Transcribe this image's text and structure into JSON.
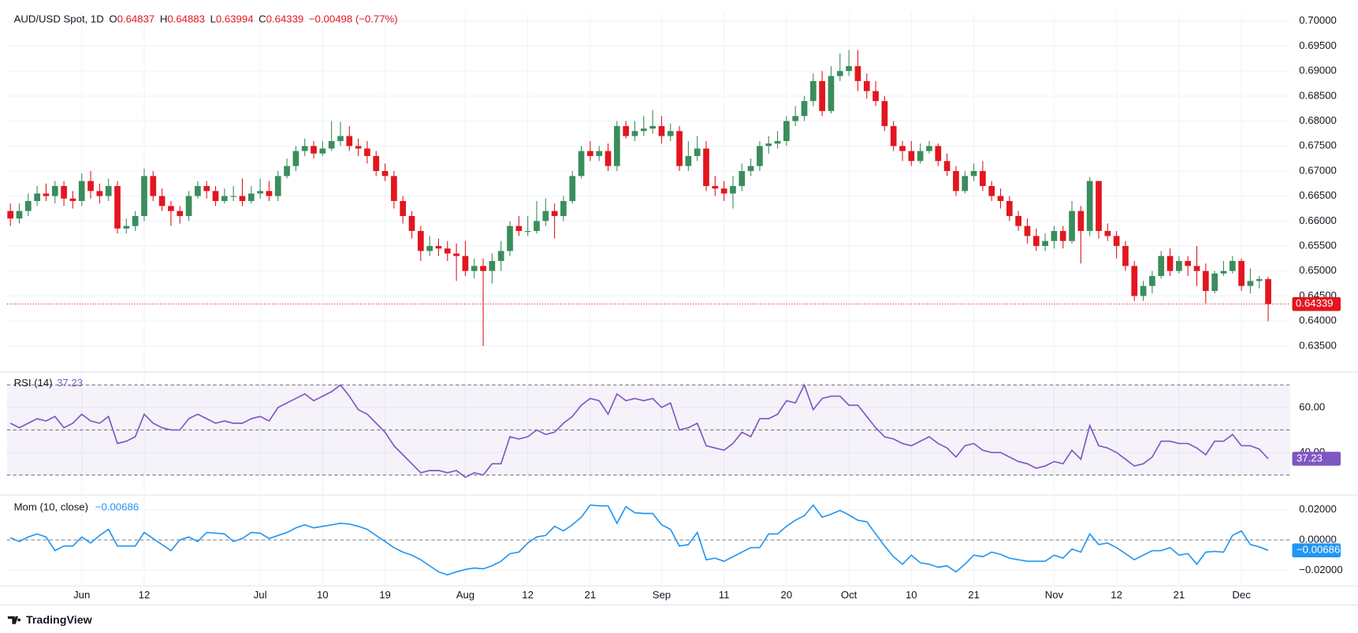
{
  "brand": "TradingView",
  "chart_data": [
    {
      "type": "candlestick",
      "title": "AUD/USD Spot, 1D",
      "ohlc_keys": [
        "O",
        "H",
        "L",
        "C"
      ],
      "change_label": "−0.00498 (−0.77%)",
      "up_color": "#3a8d5c",
      "down_color": "#e3161f",
      "grid": true,
      "categories": [
        null,
        null,
        null,
        null,
        null,
        null,
        null,
        null,
        "Jun",
        null,
        null,
        null,
        null,
        null,
        null,
        "12",
        null,
        null,
        null,
        null,
        null,
        null,
        null,
        null,
        null,
        null,
        null,
        null,
        "Jul",
        null,
        null,
        null,
        null,
        null,
        null,
        "10",
        null,
        null,
        null,
        null,
        null,
        null,
        "19",
        null,
        null,
        null,
        null,
        null,
        null,
        null,
        null,
        "Aug",
        null,
        null,
        null,
        null,
        null,
        null,
        "12",
        null,
        null,
        null,
        null,
        null,
        null,
        "21",
        null,
        null,
        null,
        null,
        null,
        null,
        null,
        "Sep",
        null,
        null,
        null,
        null,
        null,
        null,
        "11",
        null,
        null,
        null,
        null,
        null,
        null,
        "20",
        null,
        null,
        null,
        null,
        null,
        null,
        "Oct",
        null,
        null,
        null,
        null,
        null,
        null,
        "10",
        null,
        null,
        null,
        null,
        null,
        null,
        "21",
        null,
        null,
        null,
        null,
        null,
        null,
        null,
        null,
        "Nov",
        null,
        null,
        null,
        null,
        null,
        null,
        "12",
        null,
        null,
        null,
        null,
        null,
        null,
        "21",
        null,
        null,
        null,
        null,
        null,
        null,
        "Dec",
        null,
        null,
        null
      ],
      "open": [
        0.662,
        0.6605,
        0.662,
        0.664,
        0.6655,
        0.665,
        0.667,
        0.6645,
        0.664,
        0.668,
        0.666,
        0.665,
        0.667,
        0.6585,
        0.659,
        0.661,
        0.669,
        0.665,
        0.663,
        0.662,
        0.661,
        0.665,
        0.667,
        0.666,
        0.664,
        0.665,
        0.665,
        0.664,
        0.6655,
        0.666,
        0.665,
        0.669,
        0.671,
        0.674,
        0.675,
        0.6735,
        0.6745,
        0.676,
        0.677,
        0.675,
        0.6745,
        0.673,
        0.67,
        0.669,
        0.664,
        0.661,
        0.658,
        0.654,
        0.655,
        0.6545,
        0.6535,
        0.653,
        0.65,
        0.651,
        0.65,
        0.652,
        0.654,
        0.659,
        0.658,
        0.658,
        0.66,
        0.662,
        0.661,
        0.664,
        0.669,
        0.674,
        0.673,
        0.674,
        0.671,
        0.679,
        0.677,
        0.678,
        0.6785,
        0.679,
        0.677,
        0.678,
        0.671,
        0.673,
        0.6745,
        0.667,
        0.6665,
        0.6655,
        0.667,
        0.67,
        0.671,
        0.675,
        0.6755,
        0.676,
        0.68,
        0.681,
        0.684,
        0.688,
        0.682,
        0.689,
        0.69,
        0.691,
        0.688,
        0.686,
        0.684,
        0.679,
        0.675,
        0.674,
        0.672,
        0.674,
        0.675,
        0.672,
        0.67,
        0.666,
        0.669,
        0.67,
        0.667,
        0.665,
        0.664,
        0.661,
        0.659,
        0.657,
        0.655,
        0.656,
        0.658,
        0.656,
        0.662,
        0.658,
        0.668,
        0.658,
        0.657,
        0.655,
        0.651,
        0.645,
        0.647,
        0.649,
        0.653,
        0.65,
        0.652,
        0.651,
        0.65,
        0.646,
        0.6495,
        0.65,
        0.652,
        0.647,
        0.648,
        0.64837
      ],
      "high": [
        0.6635,
        0.6635,
        0.6655,
        0.667,
        0.6675,
        0.668,
        0.668,
        0.666,
        0.6695,
        0.67,
        0.6675,
        0.6685,
        0.668,
        0.6605,
        0.662,
        0.6705,
        0.67,
        0.6665,
        0.664,
        0.663,
        0.666,
        0.668,
        0.668,
        0.667,
        0.6665,
        0.667,
        0.6685,
        0.667,
        0.6685,
        0.668,
        0.67,
        0.6725,
        0.675,
        0.6765,
        0.676,
        0.676,
        0.68,
        0.6798,
        0.679,
        0.6765,
        0.676,
        0.674,
        0.6715,
        0.67,
        0.665,
        0.662,
        0.659,
        0.657,
        0.6565,
        0.656,
        0.6555,
        0.656,
        0.6525,
        0.6525,
        0.6535,
        0.656,
        0.66,
        0.661,
        0.661,
        0.664,
        0.6645,
        0.6635,
        0.665,
        0.67,
        0.675,
        0.676,
        0.675,
        0.6755,
        0.68,
        0.68,
        0.68,
        0.681,
        0.6822,
        0.681,
        0.6795,
        0.679,
        0.676,
        0.677,
        0.676,
        0.669,
        0.668,
        0.669,
        0.6715,
        0.6725,
        0.676,
        0.677,
        0.678,
        0.681,
        0.683,
        0.685,
        0.6895,
        0.69,
        0.691,
        0.6935,
        0.6942,
        0.6942,
        0.6895,
        0.688,
        0.685,
        0.68,
        0.676,
        0.676,
        0.6755,
        0.676,
        0.6755,
        0.6735,
        0.671,
        0.67,
        0.6715,
        0.672,
        0.668,
        0.6665,
        0.665,
        0.662,
        0.6605,
        0.6585,
        0.6575,
        0.659,
        0.659,
        0.664,
        0.663,
        0.6688,
        0.668,
        0.6595,
        0.658,
        0.656,
        0.652,
        0.648,
        0.65,
        0.654,
        0.6545,
        0.653,
        0.653,
        0.655,
        0.6515,
        0.65,
        0.652,
        0.653,
        0.6525,
        0.6505,
        0.649,
        0.64883
      ],
      "low": [
        0.659,
        0.6595,
        0.661,
        0.663,
        0.664,
        0.6635,
        0.663,
        0.6625,
        0.663,
        0.6645,
        0.6635,
        0.664,
        0.6575,
        0.6575,
        0.658,
        0.66,
        0.664,
        0.662,
        0.659,
        0.6595,
        0.66,
        0.6645,
        0.6645,
        0.663,
        0.6635,
        0.664,
        0.663,
        0.6635,
        0.6645,
        0.664,
        0.664,
        0.6685,
        0.67,
        0.673,
        0.6725,
        0.673,
        0.674,
        0.675,
        0.674,
        0.673,
        0.6715,
        0.669,
        0.668,
        0.6625,
        0.6595,
        0.6565,
        0.652,
        0.653,
        0.653,
        0.652,
        0.648,
        0.649,
        0.6485,
        0.635,
        0.6475,
        0.65,
        0.653,
        0.657,
        0.657,
        0.6575,
        0.659,
        0.6565,
        0.66,
        0.6635,
        0.6685,
        0.672,
        0.672,
        0.67,
        0.67,
        0.6765,
        0.676,
        0.677,
        0.6775,
        0.6755,
        0.676,
        0.67,
        0.67,
        0.672,
        0.666,
        0.665,
        0.664,
        0.6625,
        0.666,
        0.669,
        0.67,
        0.6735,
        0.6745,
        0.675,
        0.679,
        0.68,
        0.683,
        0.681,
        0.6815,
        0.688,
        0.689,
        0.686,
        0.6845,
        0.683,
        0.678,
        0.674,
        0.672,
        0.671,
        0.6715,
        0.6735,
        0.671,
        0.669,
        0.665,
        0.6655,
        0.668,
        0.666,
        0.664,
        0.6625,
        0.66,
        0.658,
        0.6555,
        0.654,
        0.654,
        0.6545,
        0.6545,
        0.6555,
        0.6515,
        0.657,
        0.6565,
        0.656,
        0.6525,
        0.65,
        0.644,
        0.644,
        0.6455,
        0.6485,
        0.649,
        0.6495,
        0.649,
        0.647,
        0.6435,
        0.6455,
        0.649,
        0.6495,
        0.646,
        0.6455,
        0.6465,
        0.63994
      ],
      "close": [
        0.6605,
        0.662,
        0.664,
        0.6655,
        0.665,
        0.667,
        0.6645,
        0.664,
        0.668,
        0.666,
        0.665,
        0.667,
        0.6585,
        0.659,
        0.661,
        0.669,
        0.665,
        0.663,
        0.662,
        0.661,
        0.665,
        0.667,
        0.666,
        0.664,
        0.665,
        0.665,
        0.664,
        0.6655,
        0.666,
        0.665,
        0.669,
        0.671,
        0.674,
        0.675,
        0.6735,
        0.6745,
        0.676,
        0.677,
        0.675,
        0.6745,
        0.673,
        0.67,
        0.669,
        0.664,
        0.661,
        0.658,
        0.654,
        0.655,
        0.6545,
        0.6535,
        0.653,
        0.65,
        0.651,
        0.65,
        0.652,
        0.654,
        0.659,
        0.658,
        0.658,
        0.66,
        0.662,
        0.661,
        0.664,
        0.669,
        0.674,
        0.673,
        0.674,
        0.671,
        0.679,
        0.677,
        0.678,
        0.6785,
        0.679,
        0.677,
        0.678,
        0.671,
        0.673,
        0.6745,
        0.667,
        0.6665,
        0.6655,
        0.667,
        0.67,
        0.671,
        0.675,
        0.6755,
        0.676,
        0.68,
        0.681,
        0.684,
        0.688,
        0.682,
        0.689,
        0.69,
        0.691,
        0.688,
        0.686,
        0.684,
        0.679,
        0.675,
        0.674,
        0.672,
        0.674,
        0.675,
        0.672,
        0.67,
        0.666,
        0.669,
        0.67,
        0.667,
        0.665,
        0.664,
        0.661,
        0.659,
        0.657,
        0.655,
        0.656,
        0.658,
        0.656,
        0.662,
        0.658,
        0.668,
        0.658,
        0.657,
        0.655,
        0.651,
        0.645,
        0.647,
        0.649,
        0.653,
        0.65,
        0.652,
        0.651,
        0.65,
        0.646,
        0.6495,
        0.65,
        0.652,
        0.647,
        0.648,
        0.64837,
        0.64339
      ],
      "ylim": [
        0.62997,
        0.70173
      ],
      "yticks": [
        {
          "value": 0.635,
          "label": "0.63500"
        },
        {
          "value": 0.64,
          "label": "0.64000"
        },
        {
          "value": 0.645,
          "label": "0.64500"
        },
        {
          "value": 0.65,
          "label": "0.65000"
        },
        {
          "value": 0.655,
          "label": "0.65500"
        },
        {
          "value": 0.66,
          "label": "0.66000"
        },
        {
          "value": 0.665,
          "label": "0.66500"
        },
        {
          "value": 0.67,
          "label": "0.67000"
        },
        {
          "value": 0.675,
          "label": "0.67500"
        },
        {
          "value": 0.68,
          "label": "0.68000"
        },
        {
          "value": 0.685,
          "label": "0.68500"
        },
        {
          "value": 0.69,
          "label": "0.69000"
        },
        {
          "value": 0.695,
          "label": "0.69500"
        },
        {
          "value": 0.7,
          "label": "0.70000"
        }
      ]
    },
    {
      "type": "line",
      "grid": true,
      "band": [
        30,
        70
      ],
      "levels": [
        30,
        50,
        70
      ],
      "band_color": "#7e57c2",
      "series": [
        {
          "name": "RSI (14)",
          "color": "#7e57c2",
          "values": [
            53,
            51,
            53,
            55,
            54,
            56,
            51,
            53,
            57,
            54,
            53,
            56,
            44,
            45,
            47,
            57,
            53,
            51,
            50,
            50,
            55,
            57,
            55,
            53,
            54,
            53,
            53,
            55,
            56,
            54,
            60,
            62,
            64,
            66,
            63,
            65,
            67,
            70,
            65,
            59,
            57,
            53,
            49,
            43,
            39,
            35,
            31,
            32,
            32,
            31,
            32,
            29,
            31,
            30,
            35,
            35,
            47,
            46,
            47,
            50,
            48,
            49,
            53,
            56,
            61,
            64,
            63,
            57,
            66,
            63,
            64,
            63,
            64,
            60,
            62,
            50,
            51,
            53,
            43,
            42,
            41,
            44,
            49,
            47,
            55,
            55,
            57,
            63,
            62,
            70,
            59,
            64,
            65,
            65,
            61,
            61,
            56,
            51,
            47,
            46,
            44,
            43,
            45,
            47,
            44,
            42,
            38,
            43,
            44,
            41,
            40,
            40,
            38,
            36,
            35,
            33,
            34,
            36,
            35,
            41,
            37,
            52,
            43,
            42,
            40,
            37,
            34,
            35,
            38,
            45,
            45,
            44,
            44,
            42,
            39,
            45,
            45,
            48,
            43,
            43,
            41.5,
            37.23
          ]
        }
      ],
      "ylim": [
        21.54,
        75.38
      ],
      "yticks": [
        {
          "value": 40,
          "label": "40.00"
        },
        {
          "value": 60,
          "label": "60.00"
        }
      ]
    },
    {
      "type": "line",
      "grid": true,
      "levels": [
        0
      ],
      "current_value_label": "−0.00686",
      "series": [
        {
          "name": "Mom (10, close)",
          "color": "#2196f3",
          "values": [
            0.0015,
            -0.001,
            0.002,
            0.004,
            0.002,
            -0.007,
            -0.004,
            -0.004,
            0.002,
            -0.002,
            0.003,
            0.007,
            -0.004,
            -0.004,
            -0.004,
            0.005,
            0.001,
            -0.003,
            -0.007,
            0,
            0.002,
            -0.001,
            0.005,
            0.0045,
            0.004,
            -0.001,
            0.001,
            0.005,
            0.0045,
            0.001,
            0.003,
            0.005,
            0.008,
            0.01,
            0.008,
            0.009,
            0.01,
            0.011,
            0.0105,
            0.009,
            0.007,
            0.003,
            -0.001,
            -0.005,
            -0.008,
            -0.01,
            -0.013,
            -0.017,
            -0.021,
            -0.023,
            -0.021,
            -0.0195,
            -0.0185,
            -0.019,
            -0.017,
            -0.014,
            -0.009,
            -0.008,
            -0.002,
            0.002,
            0.003,
            0.009,
            0.006,
            0.01,
            0.015,
            0.023,
            0.0225,
            0.0225,
            0.011,
            0.022,
            0.018,
            0.0175,
            0.0175,
            0.01,
            0.007,
            -0.004,
            -0.003,
            0.005,
            -0.013,
            -0.012,
            -0.014,
            -0.011,
            -0.008,
            -0.005,
            -0.005,
            0.004,
            0.004,
            0.009,
            0.013,
            0.016,
            0.023,
            0.015,
            0.017,
            0.0195,
            0.0165,
            0.013,
            0.012,
            0.004,
            -0.004,
            -0.011,
            -0.016,
            -0.01,
            -0.015,
            -0.016,
            -0.018,
            -0.017,
            -0.021,
            -0.016,
            -0.01,
            -0.011,
            -0.008,
            -0.0095,
            -0.012,
            -0.013,
            -0.014,
            -0.014,
            -0.014,
            -0.01,
            -0.012,
            -0.006,
            -0.008,
            0.004,
            -0.003,
            -0.002,
            -0.005,
            -0.009,
            -0.013,
            -0.01,
            -0.007,
            -0.007,
            -0.005,
            -0.01,
            -0.009,
            -0.016,
            -0.008,
            -0.0075,
            -0.008,
            0.003,
            0.006,
            -0.003,
            -0.0045,
            -0.00686
          ]
        }
      ],
      "ylim": [
        -0.02971,
        0.02914
      ],
      "yticks": [
        {
          "value": -0.02,
          "label": "−0.02000"
        },
        {
          "value": 0,
          "label": "0.00000"
        },
        {
          "value": 0.02,
          "label": "0.02000"
        }
      ]
    }
  ]
}
